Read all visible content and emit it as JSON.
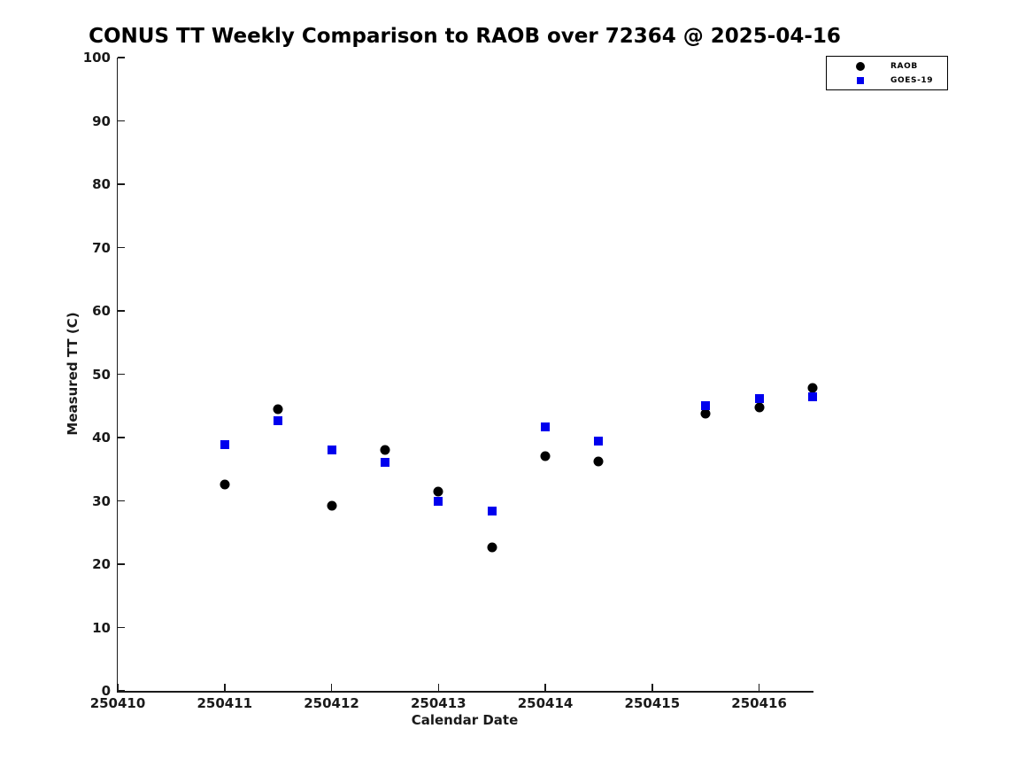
{
  "title": "CONUS TT Weekly Comparison to RAOB over 72364 @ 2025-04-16",
  "chart_data": {
    "type": "scatter",
    "title": "CONUS TT Weekly Comparison to RAOB over 72364 @ 2025-04-16",
    "xlabel": "Calendar Date",
    "ylabel": "Measured TT (C)",
    "xlim": [
      250410,
      250416.5
    ],
    "ylim": [
      0,
      100
    ],
    "x_ticks": [
      250410,
      250411,
      250412,
      250413,
      250414,
      250415,
      250416
    ],
    "x_tick_labels": [
      "250410",
      "250411",
      "250412",
      "250413",
      "250414",
      "250415",
      "250416"
    ],
    "y_ticks": [
      0,
      10,
      20,
      30,
      40,
      50,
      60,
      70,
      80,
      90,
      100
    ],
    "y_tick_labels": [
      "0",
      "10",
      "20",
      "30",
      "40",
      "50",
      "60",
      "70",
      "80",
      "90",
      "100"
    ],
    "grid": false,
    "background_color": "#ffffff",
    "axis_color": "#1a1a1a",
    "legend": {
      "position": "top-right",
      "entries": [
        {
          "label": "RAOB",
          "marker": "circle",
          "color": "#000000"
        },
        {
          "label": "GOES-19",
          "marker": "square",
          "color": "#0000ee"
        }
      ]
    },
    "series": [
      {
        "name": "RAOB",
        "marker": "circle",
        "color": "#000000",
        "x": [
          250411.0,
          250411.5,
          250412.0,
          250412.5,
          250413.0,
          250413.5,
          250414.0,
          250414.5,
          250415.5,
          250416.0,
          250416.5
        ],
        "y": [
          32.6,
          44.5,
          29.2,
          38.1,
          31.5,
          22.6,
          37.0,
          36.2,
          43.8,
          44.8,
          47.9
        ]
      },
      {
        "name": "GOES-19",
        "marker": "square",
        "color": "#0000ee",
        "x": [
          250411.0,
          250411.5,
          250412.0,
          250412.5,
          250413.0,
          250413.5,
          250414.0,
          250414.5,
          250415.5,
          250416.0,
          250416.5
        ],
        "y": [
          38.9,
          42.6,
          38.1,
          36.1,
          30.0,
          28.4,
          41.7,
          39.5,
          45.1,
          46.2,
          46.4
        ]
      }
    ]
  }
}
